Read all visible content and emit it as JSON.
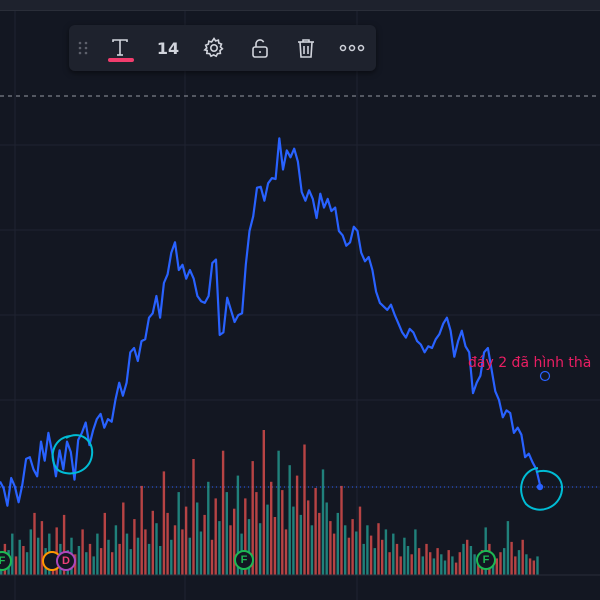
{
  "toolbar": {
    "items": [
      {
        "name": "drag-handle",
        "icon": "grip-dots-icon"
      },
      {
        "name": "text-tool",
        "icon": "text-T-icon",
        "active": true
      },
      {
        "name": "font-size",
        "label": "14"
      },
      {
        "name": "settings",
        "icon": "gear-icon"
      },
      {
        "name": "lock",
        "icon": "unlock-icon"
      },
      {
        "name": "delete",
        "icon": "trash-icon"
      },
      {
        "name": "more",
        "icon": "more-dots-icon"
      }
    ],
    "font_size": "14",
    "accent": "#f23d6d"
  },
  "annotation": {
    "text": "đáy 2 đã hình thà",
    "color": "#e91e63"
  },
  "markers": [
    {
      "label": "F",
      "kind": "f"
    },
    {
      "label": "",
      "kind": "o"
    },
    {
      "label": "D",
      "kind": "d"
    },
    {
      "label": "F",
      "kind": "f"
    },
    {
      "label": "F",
      "kind": "f"
    }
  ],
  "colors": {
    "background": "#131722",
    "price_line": "#2962ff",
    "volume_up": "#26a69a",
    "volume_down": "#ef5350",
    "circle": "#00bcd4",
    "grid": "#1f2331"
  },
  "chart_data": {
    "type": "line",
    "price": [
      52,
      70,
      78,
      88,
      84,
      110,
      118,
      112,
      135,
      138,
      130,
      150,
      160,
      185,
      210,
      205,
      178,
      170,
      158,
      205,
      212,
      230,
      218,
      200,
      230,
      245,
      238,
      226,
      220,
      210,
      212,
      205,
      214,
      218,
      228,
      232,
      222,
      228,
      238,
      248,
      260,
      254,
      258,
      262,
      275,
      300,
      315,
      310,
      320,
      345,
      350,
      332,
      328,
      340,
      345,
      372,
      368,
      382,
      372,
      388,
      360,
      382,
      392,
      380,
      390,
      425,
      440,
      430,
      438,
      416,
      452,
      405,
      406,
      400,
      380,
      396,
      395,
      362,
      345,
      306,
      250,
      248,
      240,
      254,
      268,
      228,
      225,
      312,
      308,
      270,
      262,
      264,
      270,
      290,
      300,
      290,
      306,
      300,
      332,
      320,
      295,
      285,
      245,
      270,
      250,
      245,
      220,
      218,
      195,
      210,
      205,
      170,
      155,
      170,
      150,
      125,
      128,
      118,
      134,
      128,
      115,
      98,
      124,
      112,
      104,
      58,
      90,
      102,
      70,
      92,
      62,
      90,
      112,
      80,
      102,
      62,
      70,
      84,
      82,
      52,
      32,
      50,
      60,
      28,
      48,
      56
    ],
    "volume": [
      18,
      30,
      24,
      40,
      18,
      34,
      28,
      22,
      44,
      60,
      36,
      52,
      26,
      40,
      20,
      46,
      30,
      58,
      24,
      36,
      20,
      28,
      44,
      22,
      30,
      18,
      40,
      26,
      60,
      34,
      22,
      48,
      30,
      70,
      40,
      25,
      54,
      36,
      86,
      44,
      30,
      62,
      50,
      28,
      100,
      60,
      34,
      48,
      80,
      44,
      66,
      36,
      112,
      70,
      42,
      58,
      90,
      34,
      74,
      52,
      120,
      80,
      48,
      64,
      96,
      40,
      74,
      54,
      110,
      80,
      50,
      140,
      68,
      90,
      56,
      120,
      82,
      44,
      106,
      66,
      96,
      58,
      126,
      72,
      48,
      84,
      60,
      102,
      70,
      52,
      40,
      60,
      86,
      48,
      36,
      54,
      42,
      66,
      30,
      48,
      38,
      26,
      50,
      34,
      44,
      22,
      40,
      30,
      18,
      36,
      28,
      20,
      44,
      26,
      18,
      30,
      22,
      16,
      26,
      20,
      14,
      24,
      18,
      12,
      22,
      30,
      34,
      28,
      20,
      18,
      24,
      46,
      30,
      20,
      16,
      22,
      26,
      52,
      32,
      18,
      24,
      34,
      20,
      16,
      14,
      18
    ],
    "volume_direction": [
      1,
      0,
      1,
      1,
      0,
      1,
      0,
      1,
      1,
      0,
      1,
      0,
      1,
      1,
      0,
      0,
      1,
      0,
      1,
      1,
      0,
      1,
      0,
      1,
      0,
      1,
      1,
      0,
      0,
      1,
      0,
      1,
      0,
      0,
      1,
      1,
      0,
      1,
      0,
      0,
      1,
      0,
      1,
      1,
      0,
      0,
      1,
      0,
      1,
      0,
      0,
      1,
      0,
      1,
      1,
      0,
      1,
      0,
      0,
      1,
      0,
      1,
      0,
      0,
      1,
      1,
      0,
      1,
      0,
      0,
      1,
      0,
      1,
      0,
      0,
      1,
      0,
      0,
      1,
      1,
      0,
      1,
      0,
      0,
      1,
      0,
      0,
      1,
      1,
      0,
      0,
      1,
      0,
      1,
      0,
      0,
      1,
      0,
      1,
      1,
      0,
      1,
      0,
      0,
      1,
      0,
      1,
      0,
      0,
      1,
      1,
      0,
      1,
      0,
      1,
      0,
      0,
      1,
      0,
      1,
      1,
      0,
      1,
      0,
      0,
      1,
      0,
      1,
      1,
      0,
      0,
      1,
      0,
      1,
      0,
      0,
      1,
      1,
      0,
      0,
      1,
      0,
      1,
      0,
      0,
      1
    ]
  }
}
